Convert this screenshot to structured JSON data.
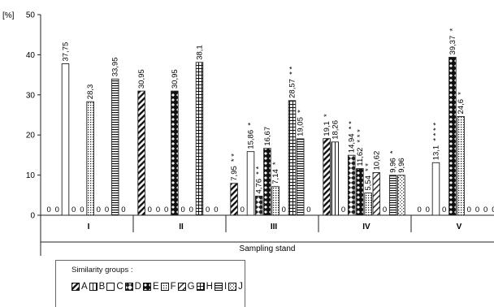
{
  "chart_data": {
    "type": "bar",
    "title": "",
    "ylabel": "[%]",
    "xlabel": "Sampling stand",
    "ylim": [
      0,
      50
    ],
    "yticks": [
      "0",
      "10",
      "20",
      "30",
      "40",
      "50"
    ],
    "categories": [
      "I",
      "II",
      "III",
      "IV",
      "V"
    ],
    "legend": {
      "title": "Similarity groups :",
      "placement": "bottom-left"
    },
    "series": [
      {
        "name": "A",
        "pattern": "diag",
        "values": [
          0,
          30.95,
          7.95,
          19.1,
          0
        ]
      },
      {
        "name": "B",
        "pattern": "vlines",
        "values": [
          0,
          0,
          0,
          18.26,
          0
        ]
      },
      {
        "name": "C",
        "pattern": "plain",
        "values": [
          37.75,
          0,
          15.86,
          0,
          13.1
        ]
      },
      {
        "name": "D",
        "pattern": "diamond-light",
        "values": [
          0,
          0,
          4.76,
          14.94,
          0
        ]
      },
      {
        "name": "E",
        "pattern": "diamond-dark",
        "values": [
          0,
          30.95,
          16.67,
          11.62,
          39.37
        ]
      },
      {
        "name": "F",
        "pattern": "dots",
        "values": [
          28.3,
          0,
          7.14,
          5.54,
          24.6
        ]
      },
      {
        "name": "G",
        "pattern": "diag-light",
        "values": [
          0,
          0,
          0,
          10.62,
          0
        ]
      },
      {
        "name": "H",
        "pattern": "grid",
        "values": [
          0,
          38.1,
          28.57,
          0,
          0
        ]
      },
      {
        "name": "I",
        "pattern": "hlines",
        "values": [
          33.95,
          0,
          19.05,
          9.96,
          0
        ]
      },
      {
        "name": "J",
        "pattern": "dots-sparse",
        "values": [
          0,
          0,
          0,
          9.96,
          0
        ]
      }
    ],
    "data_labels": [
      [
        "0",
        "0",
        "37,75",
        "0",
        "0",
        "28,3",
        "0",
        "0",
        "33,95",
        "0"
      ],
      [
        "30,95",
        "0",
        "0",
        "0",
        "30,95",
        "0",
        "0",
        "38,1",
        "0",
        "0"
      ],
      [
        "7,95",
        "0",
        "15,86",
        "4,76",
        "16,67",
        "7,14",
        "0",
        "28,57",
        "19,05",
        "0"
      ],
      [
        "19,1",
        "18,26",
        "0",
        "14,94",
        "11,62",
        "5,54",
        "10,62",
        "0",
        "9,96",
        "9,96"
      ],
      [
        "0",
        "0",
        "13,1",
        "0",
        "39,37",
        "24,6",
        "0",
        "0",
        "0",
        "0"
      ]
    ],
    "asterisks": [
      [
        "",
        "",
        "",
        "",
        "",
        "",
        "",
        "",
        "",
        ""
      ],
      [
        "",
        "",
        "",
        "",
        "",
        "",
        "",
        "",
        "",
        ""
      ],
      [
        "* *",
        "*",
        "*",
        "* *",
        "",
        "*",
        "",
        "* *",
        "*",
        ""
      ],
      [
        "*",
        "",
        "",
        "* *",
        "* * *",
        "* *",
        "",
        "",
        "*",
        ""
      ],
      [
        "",
        "",
        "* * * *",
        "",
        "*",
        "*",
        "",
        "",
        "",
        ""
      ]
    ],
    "grid": false
  }
}
